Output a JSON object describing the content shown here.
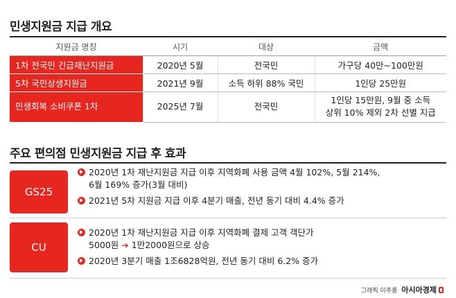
{
  "section1": {
    "title": "민생지원금 지급 개요",
    "headers": [
      "지원금 명칭",
      "시기",
      "대상",
      "금액"
    ],
    "rows": [
      {
        "name": "1차 전국민 긴급재난지원금",
        "date": "2020년 5월",
        "target": "전국민",
        "amount_lines": [
          "가구당 40만~100만원"
        ]
      },
      {
        "name": "5차 국민상생지원금",
        "date": "2021년 9월",
        "target": "소득 하위 88% 국민",
        "amount_lines": [
          "1인당 25만원"
        ]
      },
      {
        "name": "민생회복 소비쿠폰 1차",
        "date": "2025년 7월",
        "target": "전국민",
        "amount_lines": [
          "1인당 15만원, 9월 중 소득",
          "상위 10% 제외 2차 선별 지급"
        ]
      }
    ]
  },
  "section2": {
    "title": "주요 편의점 민생지원금 지급 후 효과",
    "groups": [
      {
        "brand": "GS25",
        "items": [
          {
            "lines": [
              "2020년 1차 재난지원금 지급 이후 지역화폐 사용 금액 4월 102%, 5월 214%,",
              "6월 169% 증가(3월 대비)"
            ]
          },
          {
            "lines": [
              "2021년 5차 지원금 지급 이후 4분기 매출, 전년 동기 대비 4.4% 증가"
            ]
          }
        ]
      },
      {
        "brand": "CU",
        "items": [
          {
            "line1": "2020년 1차 재난지원금 지급 이후 지역화폐 결제 고객 객단가",
            "line2_before": "5000원",
            "arrow": "➔",
            "line2_after": "1만2000원으로 상승"
          },
          {
            "lines": [
              "2020년 3분기 매출 1조6828억원, 전년 동기 대비 6.2% 증가"
            ]
          }
        ]
      }
    ]
  },
  "credit": {
    "byline": "그래픽 이주롱",
    "logo": "아시아경제"
  },
  "colors": {
    "accent": "#e6261f",
    "text": "#222222",
    "rule": "#222222"
  }
}
